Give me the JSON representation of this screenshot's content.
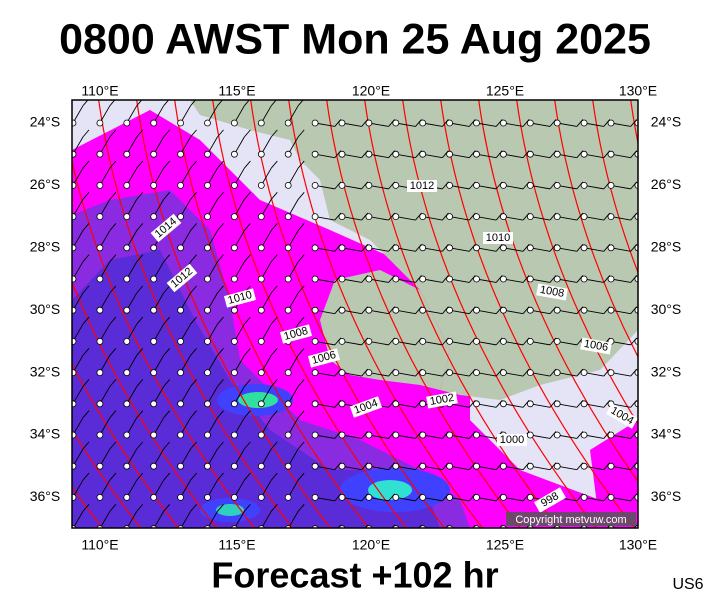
{
  "header": {
    "title": "0800 AWST Mon 25 Aug 2025"
  },
  "map": {
    "longitude_labels": [
      "110°E",
      "115°E",
      "120°E",
      "125°E",
      "130°E"
    ],
    "latitude_labels": [
      "24°S",
      "26°S",
      "28°S",
      "30°S",
      "32°S",
      "34°S",
      "36°S"
    ],
    "isobar_labels": [
      "1014",
      "1012",
      "1010",
      "1008",
      "1006",
      "1004",
      "1002",
      "1000",
      "998",
      "1012",
      "1010",
      "1008",
      "1006",
      "1004"
    ],
    "copyright": "Copyright metvuw.com"
  },
  "footer": {
    "caption": "Forecast +102 hr",
    "code": "US6"
  }
}
